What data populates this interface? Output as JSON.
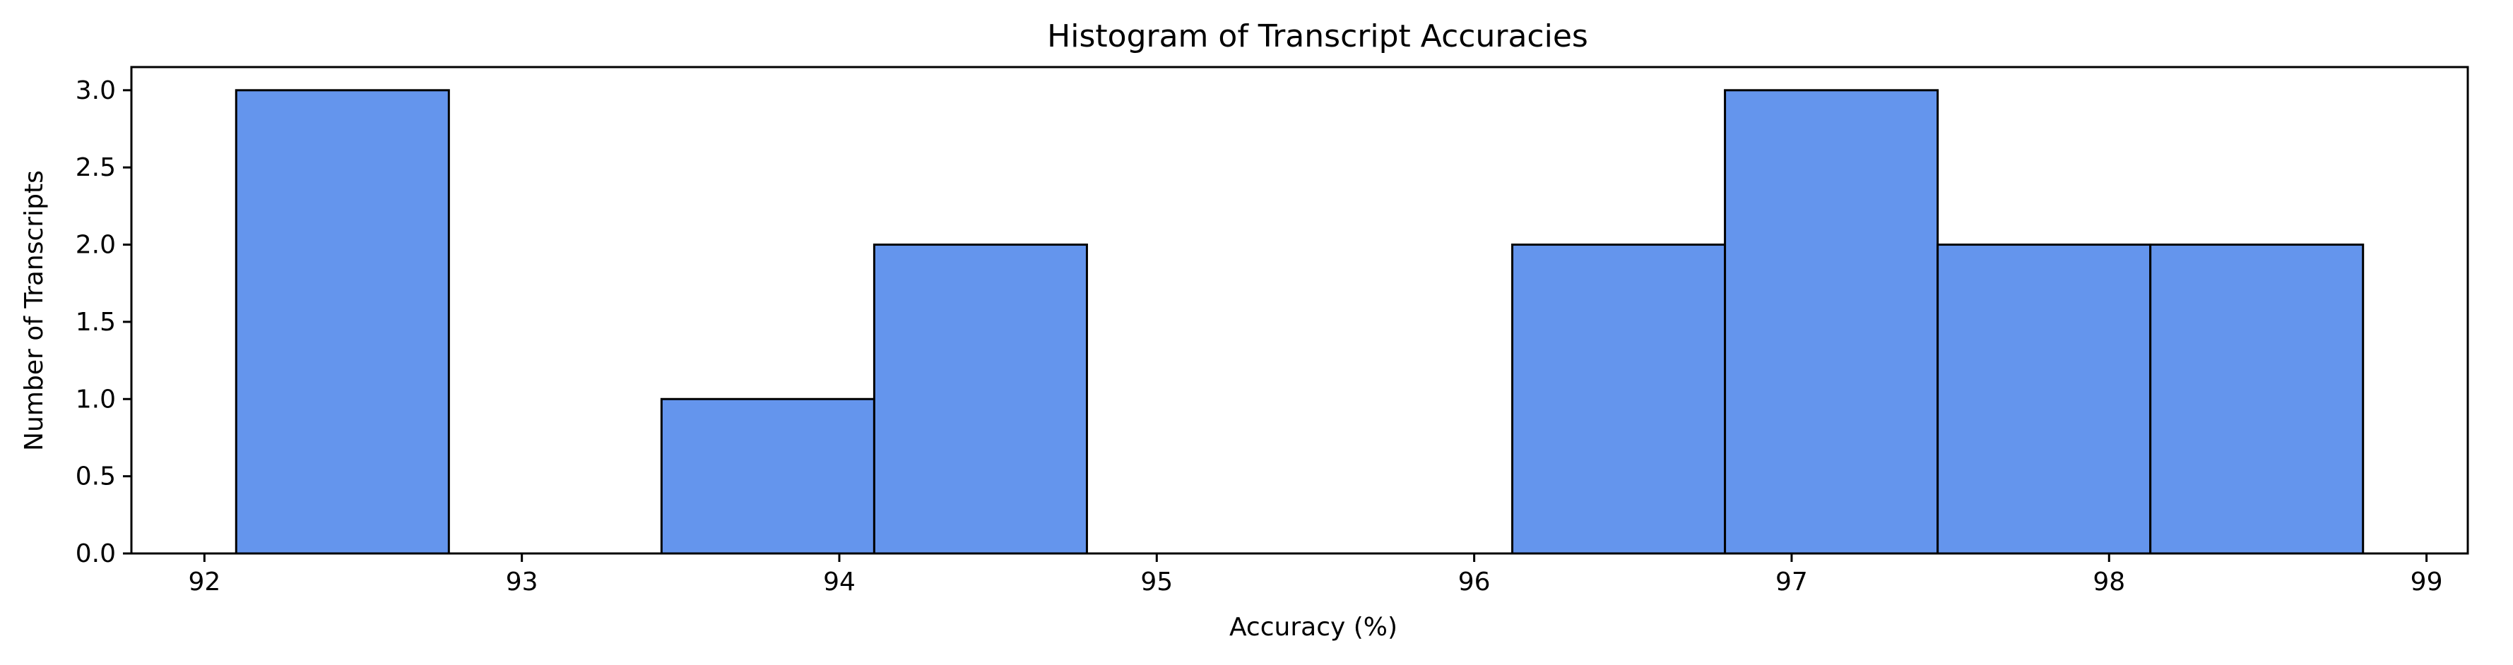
{
  "chart_data": {
    "type": "bar",
    "title": "Histogram of Transcript Accuracies",
    "xlabel": "Accuracy (%)",
    "ylabel": "Number of Transcripts",
    "xlim": [
      91.77,
      99.13
    ],
    "ylim": [
      0,
      3.15
    ],
    "x_ticks": [
      "92",
      "93",
      "94",
      "95",
      "96",
      "97",
      "98",
      "99"
    ],
    "y_ticks": [
      "0.0",
      "0.5",
      "1.0",
      "1.5",
      "2.0",
      "2.5",
      "3.0"
    ],
    "bins": [
      {
        "start": 92.1,
        "end": 92.77,
        "count": 3
      },
      {
        "start": 92.77,
        "end": 93.44,
        "count": 0
      },
      {
        "start": 93.44,
        "end": 94.11,
        "count": 1
      },
      {
        "start": 94.11,
        "end": 94.78,
        "count": 2
      },
      {
        "start": 94.78,
        "end": 95.45,
        "count": 0
      },
      {
        "start": 95.45,
        "end": 96.12,
        "count": 0
      },
      {
        "start": 96.12,
        "end": 96.79,
        "count": 2
      },
      {
        "start": 96.79,
        "end": 97.46,
        "count": 3
      },
      {
        "start": 97.46,
        "end": 98.13,
        "count": 2
      },
      {
        "start": 98.13,
        "end": 98.8,
        "count": 2
      }
    ],
    "bar_color": "#6495ed",
    "edge_color": "#000000",
    "grid": false,
    "legend": "none"
  }
}
